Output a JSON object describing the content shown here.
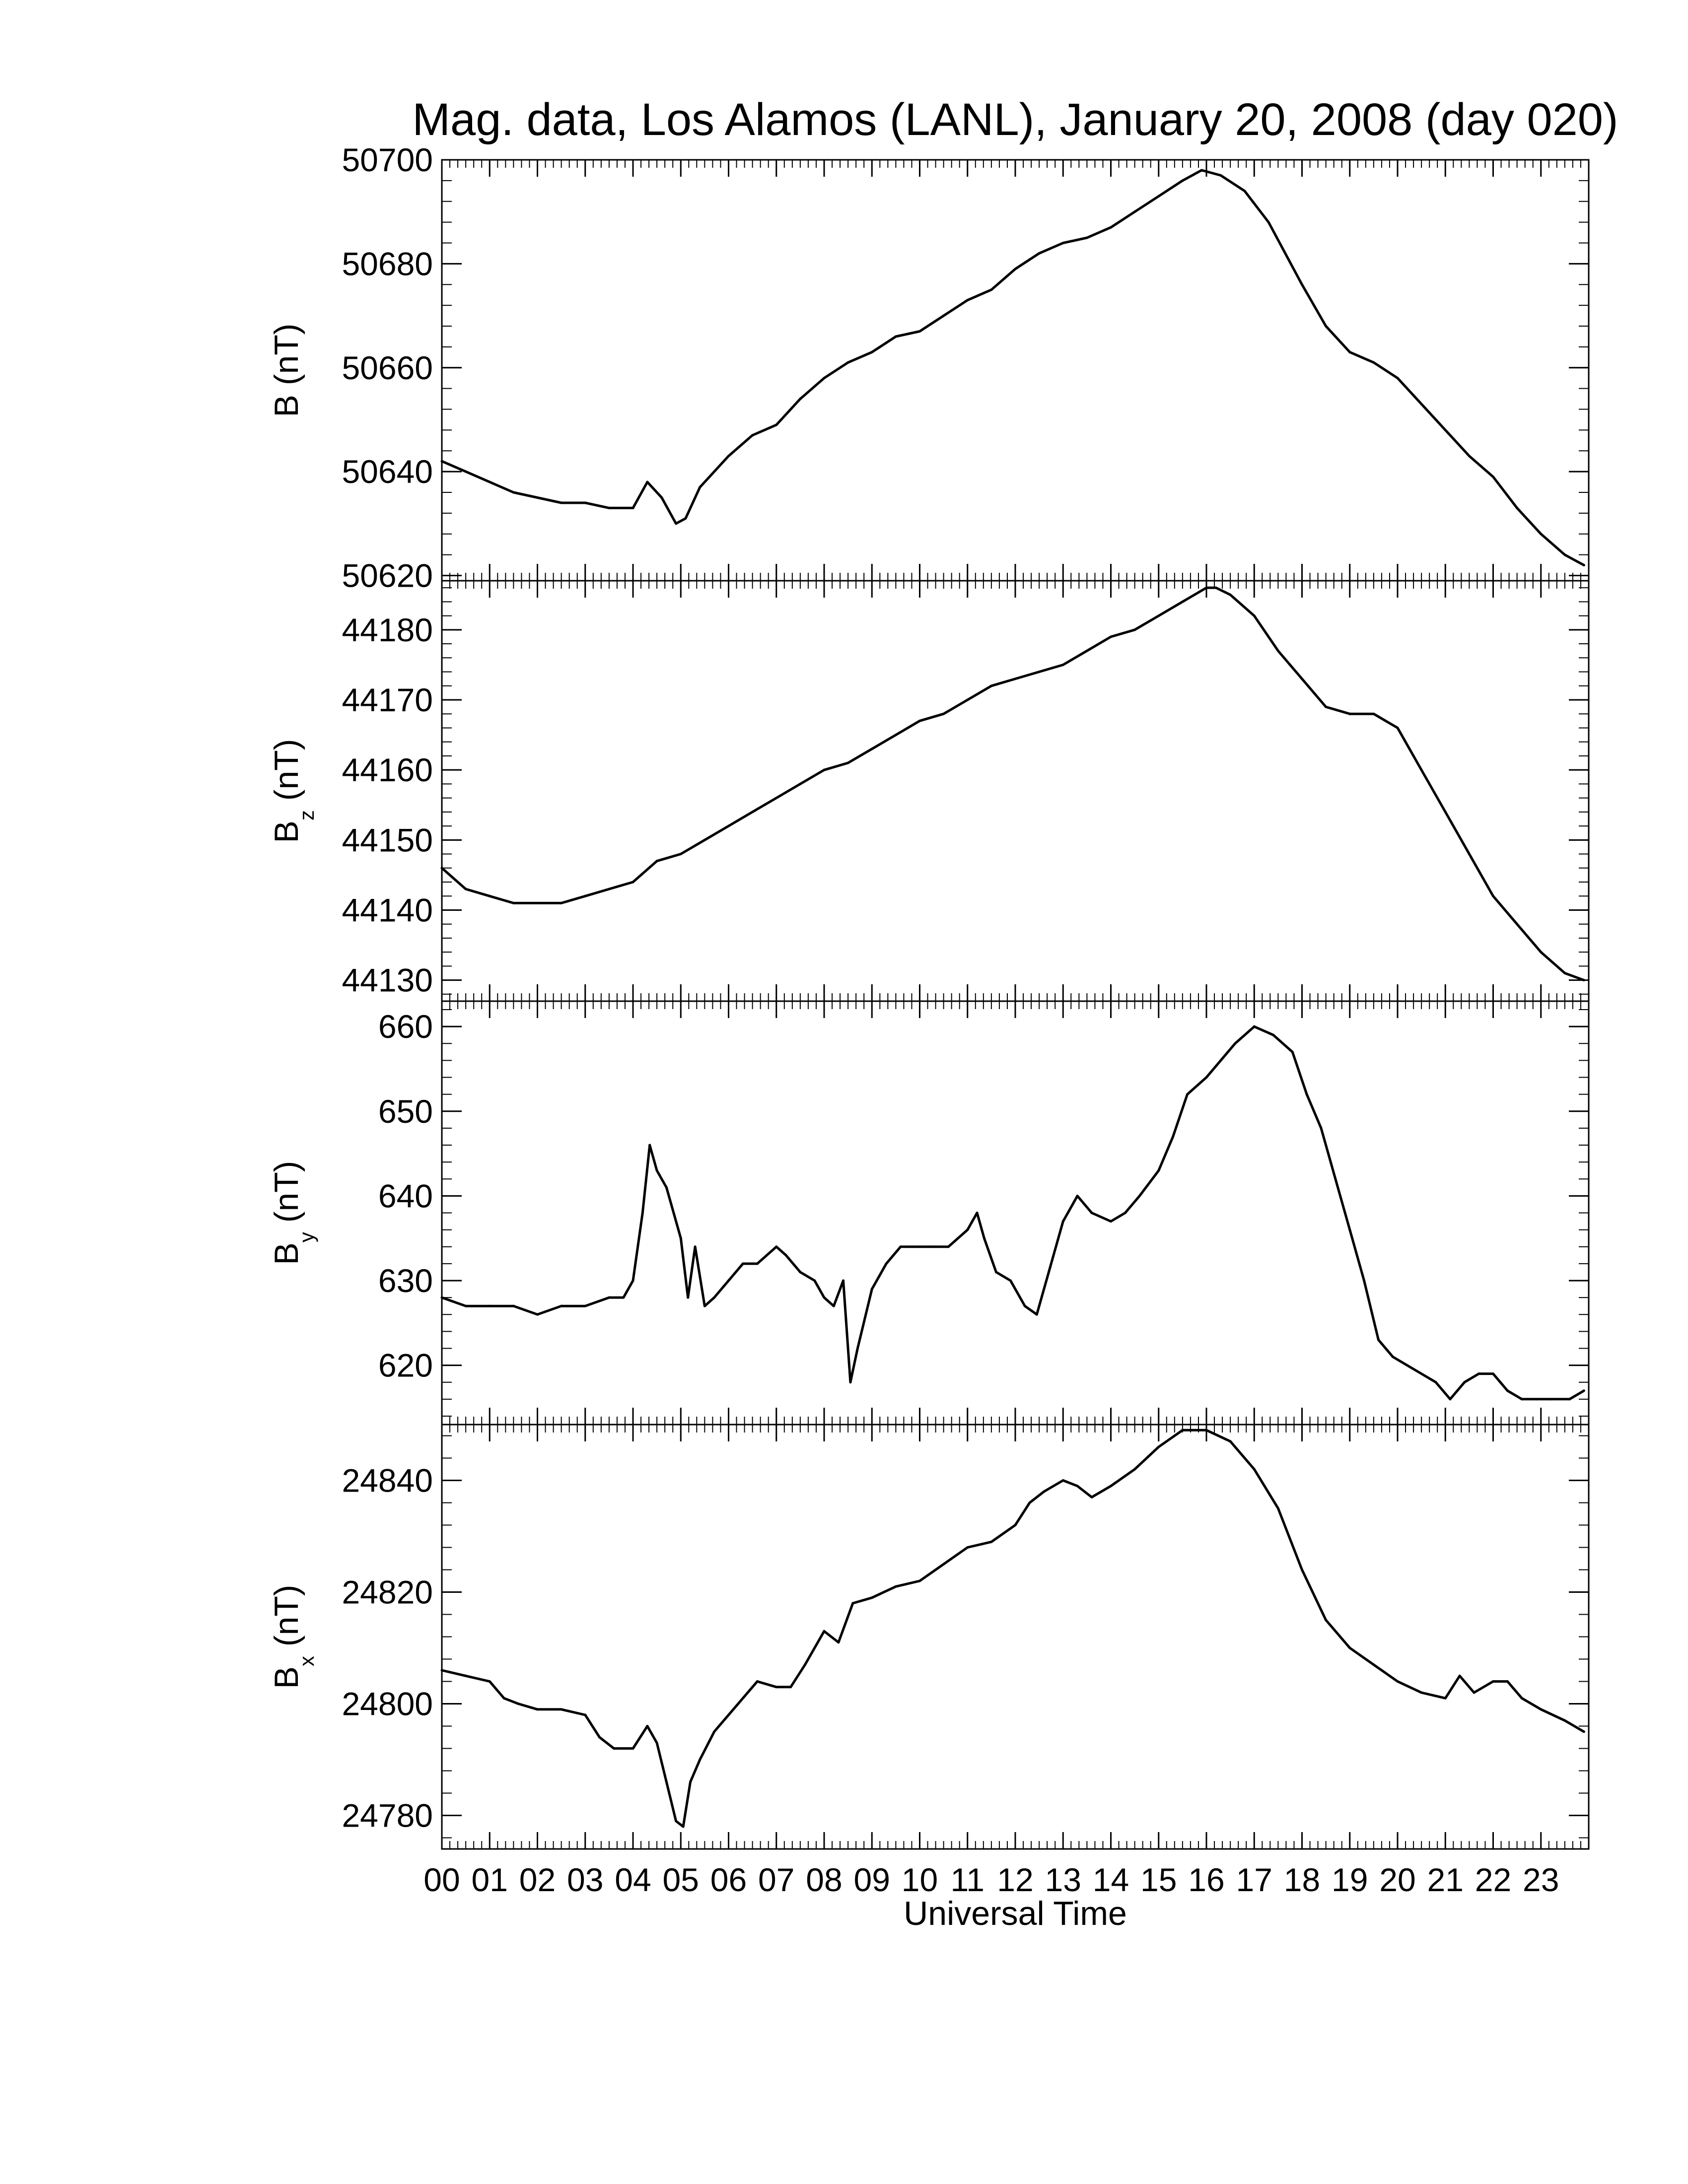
{
  "title": "Mag. data, Los Alamos (LANL), January 20, 2008 (day 020)",
  "xlabel": "Universal Time",
  "x_tick_labels": [
    "00",
    "01",
    "02",
    "03",
    "04",
    "05",
    "06",
    "07",
    "08",
    "09",
    "10",
    "11",
    "12",
    "13",
    "14",
    "15",
    "16",
    "17",
    "18",
    "19",
    "20",
    "21",
    "22",
    "23"
  ],
  "colors": {
    "line": "#000000",
    "frame": "#000000",
    "background": "#ffffff"
  },
  "chart_data": [
    {
      "type": "line",
      "ylabel": "B (nT)",
      "ylabel_main": "B",
      "ylabel_sub": "",
      "ylabel_unit": " (nT)",
      "ylim": [
        50619,
        50700
      ],
      "yticks": [
        50620,
        50640,
        50660,
        50680,
        50700
      ],
      "ytick_labels": [
        "50620",
        "50640",
        "50660",
        "50680",
        "50700"
      ],
      "x_hours": [
        0,
        0.5,
        1,
        1.5,
        2,
        2.5,
        3,
        3.5,
        4,
        4.3,
        4.6,
        4.9,
        5.1,
        5.4,
        6,
        6.5,
        7,
        7.5,
        8,
        8.5,
        9,
        9.5,
        10,
        10.5,
        11,
        11.5,
        12,
        12.5,
        13,
        13.5,
        14,
        14.5,
        15,
        15.5,
        15.9,
        16.3,
        16.8,
        17.3,
        18,
        18.5,
        19,
        19.5,
        20,
        20.5,
        21,
        21.5,
        22,
        22.5,
        23,
        23.5,
        23.9
      ],
      "values": [
        50642,
        50640,
        50638,
        50636,
        50635,
        50634,
        50634,
        50633,
        50633,
        50638,
        50635,
        50630,
        50631,
        50637,
        50643,
        50647,
        50649,
        50654,
        50658,
        50661,
        50663,
        50666,
        50667,
        50670,
        50673,
        50675,
        50679,
        50682,
        50684,
        50685,
        50687,
        50690,
        50693,
        50696,
        50698,
        50697,
        50694,
        50688,
        50676,
        50668,
        50663,
        50661,
        50658,
        50653,
        50648,
        50643,
        50639,
        50633,
        50628,
        50624,
        50622
      ]
    },
    {
      "type": "line",
      "ylabel": "Bz (nT)",
      "ylabel_main": "B",
      "ylabel_sub": "z",
      "ylabel_unit": " (nT)",
      "ylim": [
        44127,
        44187
      ],
      "yticks": [
        44130,
        44140,
        44150,
        44160,
        44170,
        44180
      ],
      "ytick_labels": [
        "44130",
        "44140",
        "44150",
        "44160",
        "44170",
        "44180"
      ],
      "x_hours": [
        0,
        0.5,
        1,
        1.5,
        2,
        2.5,
        3,
        3.5,
        4,
        4.5,
        5,
        5.5,
        6,
        6.5,
        7,
        7.5,
        8,
        8.5,
        9,
        9.5,
        10,
        10.5,
        11,
        11.5,
        12,
        12.5,
        13,
        13.5,
        14,
        14.5,
        15,
        15.5,
        16,
        16.2,
        16.5,
        17,
        17.5,
        18,
        18.5,
        19,
        19.5,
        20,
        20.5,
        21,
        21.5,
        22,
        22.5,
        23,
        23.5,
        23.9
      ],
      "values": [
        44146,
        44143,
        44142,
        44141,
        44141,
        44141,
        44142,
        44143,
        44144,
        44147,
        44148,
        44150,
        44152,
        44154,
        44156,
        44158,
        44160,
        44161,
        44163,
        44165,
        44167,
        44168,
        44170,
        44172,
        44173,
        44174,
        44175,
        44177,
        44179,
        44180,
        44182,
        44184,
        44186,
        44186,
        44185,
        44182,
        44177,
        44173,
        44169,
        44168,
        44168,
        44166,
        44160,
        44154,
        44148,
        44142,
        44138,
        44134,
        44131,
        44130
      ]
    },
    {
      "type": "line",
      "ylabel": "By (nT)",
      "ylabel_main": "B",
      "ylabel_sub": "y",
      "ylabel_unit": " (nT)",
      "ylim": [
        613,
        663
      ],
      "yticks": [
        620,
        630,
        640,
        650,
        660
      ],
      "ytick_labels": [
        "620",
        "630",
        "640",
        "650",
        "660"
      ],
      "x_hours": [
        0,
        0.5,
        1,
        1.5,
        2,
        2.5,
        3,
        3.5,
        3.8,
        4,
        4.2,
        4.35,
        4.5,
        4.7,
        5,
        5.15,
        5.3,
        5.5,
        5.7,
        6,
        6.3,
        6.6,
        7,
        7.2,
        7.5,
        7.8,
        8,
        8.2,
        8.4,
        8.55,
        8.7,
        9,
        9.3,
        9.6,
        10,
        10.3,
        10.6,
        11,
        11.2,
        11.35,
        11.6,
        11.9,
        12.2,
        12.45,
        12.7,
        13,
        13.3,
        13.6,
        14,
        14.3,
        14.6,
        15,
        15.3,
        15.6,
        16,
        16.3,
        16.6,
        17,
        17.4,
        17.8,
        18.1,
        18.4,
        18.7,
        19,
        19.3,
        19.6,
        19.9,
        20.2,
        20.5,
        20.8,
        21.1,
        21.4,
        21.7,
        22,
        22.3,
        22.6,
        22.9,
        23.2,
        23.6,
        23.9
      ],
      "values": [
        628,
        627,
        627,
        627,
        626,
        627,
        627,
        628,
        628,
        630,
        638,
        646,
        643,
        641,
        635,
        628,
        634,
        627,
        628,
        630,
        632,
        632,
        634,
        633,
        631,
        630,
        628,
        627,
        630,
        618,
        622,
        629,
        632,
        634,
        634,
        634,
        634,
        636,
        638,
        635,
        631,
        630,
        627,
        626,
        631,
        637,
        640,
        638,
        637,
        638,
        640,
        643,
        647,
        652,
        654,
        656,
        658,
        660,
        659,
        657,
        652,
        648,
        642,
        636,
        630,
        623,
        621,
        620,
        619,
        618,
        616,
        618,
        619,
        619,
        617,
        616,
        616,
        616,
        616,
        617
      ]
    },
    {
      "type": "line",
      "ylabel": "Bx (nT)",
      "ylabel_main": "B",
      "ylabel_sub": "x",
      "ylabel_unit": " (nT)",
      "ylim": [
        24774,
        24850
      ],
      "yticks": [
        24780,
        24800,
        24820,
        24840
      ],
      "ytick_labels": [
        "24780",
        "24800",
        "24820",
        "24840"
      ],
      "x_hours": [
        0,
        0.5,
        1,
        1.3,
        1.6,
        2,
        2.5,
        3,
        3.3,
        3.6,
        4,
        4.3,
        4.5,
        4.7,
        4.9,
        5.05,
        5.2,
        5.4,
        5.7,
        6,
        6.3,
        6.6,
        7,
        7.3,
        7.6,
        8,
        8.3,
        8.6,
        9,
        9.5,
        10,
        10.5,
        11,
        11.5,
        12,
        12.3,
        12.6,
        13,
        13.3,
        13.6,
        14,
        14.5,
        15,
        15.5,
        16,
        16.5,
        17,
        17.5,
        18,
        18.5,
        19,
        19.5,
        20,
        20.5,
        21,
        21.3,
        21.6,
        22,
        22.3,
        22.6,
        23,
        23.5,
        23.9
      ],
      "values": [
        24806,
        24805,
        24804,
        24801,
        24800,
        24799,
        24799,
        24798,
        24794,
        24792,
        24792,
        24796,
        24793,
        24786,
        24779,
        24778,
        24786,
        24790,
        24795,
        24798,
        24801,
        24804,
        24803,
        24803,
        24807,
        24813,
        24811,
        24818,
        24819,
        24821,
        24822,
        24825,
        24828,
        24829,
        24832,
        24836,
        24838,
        24840,
        24839,
        24837,
        24839,
        24842,
        24846,
        24849,
        24849,
        24847,
        24842,
        24835,
        24824,
        24815,
        24810,
        24807,
        24804,
        24802,
        24801,
        24805,
        24802,
        24804,
        24804,
        24801,
        24799,
        24797,
        24795
      ]
    }
  ]
}
